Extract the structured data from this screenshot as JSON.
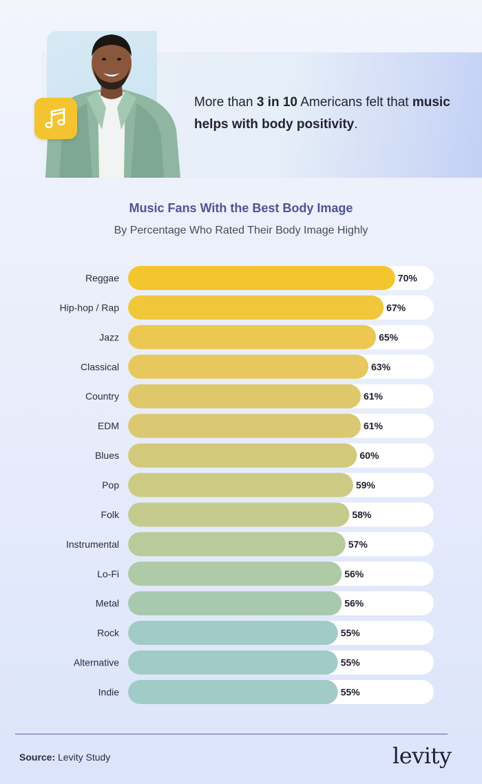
{
  "hero": {
    "text_pre": "More than ",
    "text_bold1": "3 in 10",
    "text_mid": " Americans felt that ",
    "text_bold2": "music helps with body positivity",
    "text_post": ".",
    "icon": "music-note-icon",
    "badge_color": "#f3c42f"
  },
  "chart_data": {
    "type": "bar",
    "orientation": "horizontal",
    "title": "Music Fans With the Best Body Image",
    "subtitle": "By Percentage Who Rated Their Body Image Highly",
    "xlabel": "",
    "ylabel": "",
    "categories": [
      "Reggae",
      "Hip-hop / Rap",
      "Jazz",
      "Classical",
      "Country",
      "EDM",
      "Blues",
      "Pop",
      "Folk",
      "Instrumental",
      "Lo-Fi",
      "Metal",
      "Rock",
      "Alternative",
      "Indie"
    ],
    "values": [
      70,
      67,
      65,
      63,
      61,
      61,
      60,
      59,
      58,
      57,
      56,
      56,
      55,
      55,
      55
    ],
    "value_labels": [
      "70%",
      "67%",
      "65%",
      "63%",
      "61%",
      "61%",
      "60%",
      "59%",
      "58%",
      "57%",
      "56%",
      "56%",
      "55%",
      "55%",
      "55%"
    ],
    "xlim": [
      0,
      100
    ],
    "grid": false,
    "bar_colors": [
      "#f3c52e",
      "#f0c73a",
      "#ecc852",
      "#e6c85f",
      "#dfc86a",
      "#dbc872",
      "#d3c97c",
      "#cccb83",
      "#c4cb8d",
      "#b8cb9a",
      "#aecaa6",
      "#a9c9ae",
      "#a0cbc6",
      "#a0cbc6",
      "#a0cbc6"
    ],
    "track_color": "#ffffff"
  },
  "footer": {
    "source_label": "Source:",
    "source_value": " Levity Study",
    "logo": "levity"
  }
}
